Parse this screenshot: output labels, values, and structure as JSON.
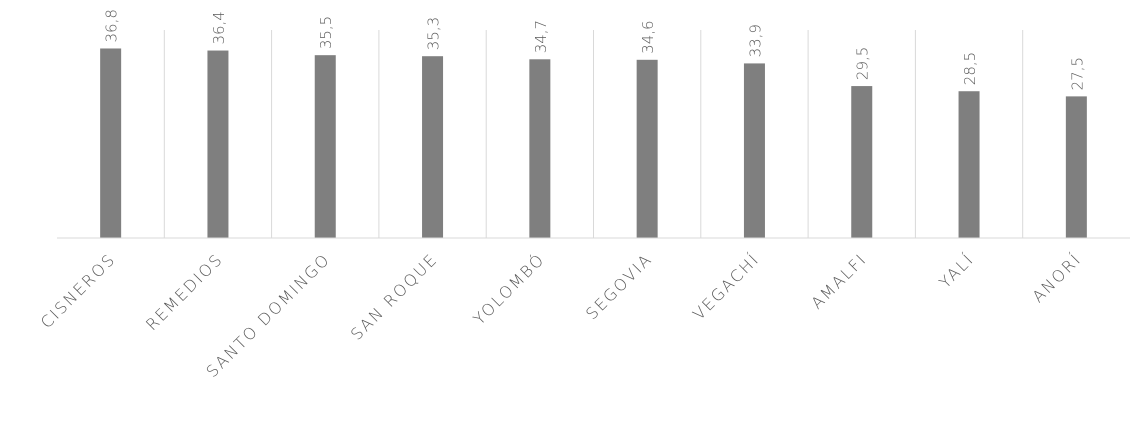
{
  "chart_data": {
    "type": "bar",
    "categories": [
      "CISNEROS",
      "REMEDIOS",
      "SANTO DOMINGO",
      "SAN ROQUE",
      "YOLOMBÓ",
      "SEGOVIA",
      "VEGACHÍ",
      "AMALFI",
      "YALÍ",
      "ANORÍ"
    ],
    "values": [
      36.8,
      36.4,
      35.5,
      35.3,
      34.7,
      34.6,
      33.9,
      29.5,
      28.5,
      27.5
    ],
    "value_labels": [
      "36,8",
      "36,4",
      "35,5",
      "35,3",
      "34,7",
      "34,6",
      "33,9",
      "29,5",
      "28,5",
      "27,5"
    ],
    "color": "#7f7f7f",
    "ylim": [
      0,
      40
    ]
  }
}
